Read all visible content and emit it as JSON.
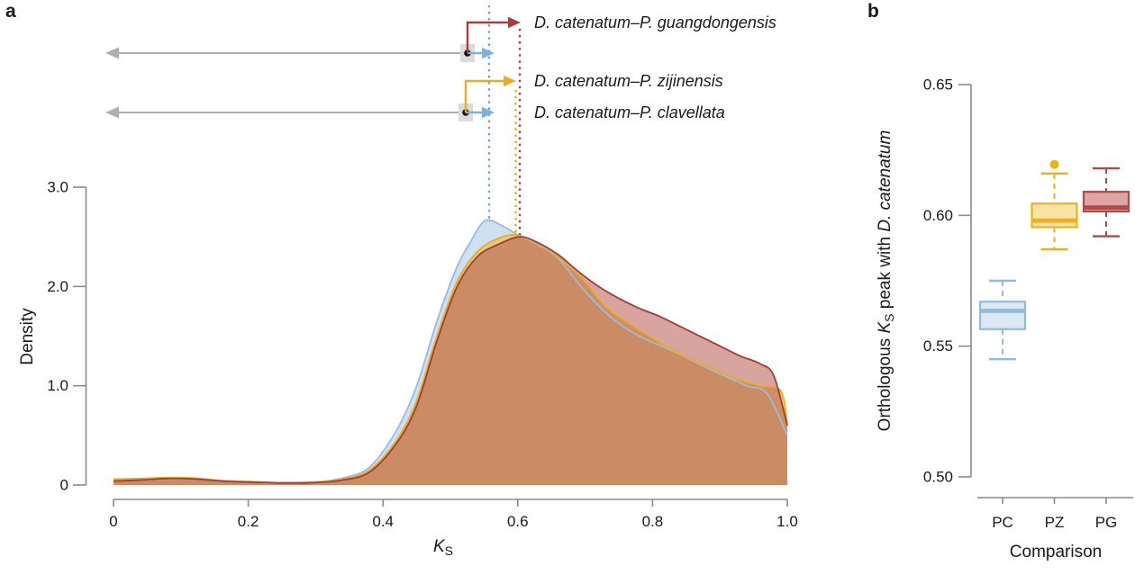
{
  "panel_a": {
    "label": "a",
    "ylabel": "Density",
    "xlabel_main": "K",
    "xlabel_sub": "S",
    "legend": [
      {
        "text": "D. catenatum–P. guangdongensis",
        "color": "#A6403C"
      },
      {
        "text": "D. catenatum–P. zijinensis",
        "color": "#EDAD21"
      },
      {
        "text": "D. catenatum–P. clavellata",
        "color": "#92B9E4"
      }
    ]
  },
  "panel_b": {
    "label": "b",
    "ylabel_prefix": "Orthologous ",
    "ylabel_k": "K",
    "ylabel_sub": "S",
    "ylabel_mid": " peak with ",
    "ylabel_species": "D. catenatum",
    "xlabel": "Comparison"
  },
  "colors": {
    "pc_blue": "#92B9E4",
    "pz_yellow": "#EDAD21",
    "pg_red": "#A6403C",
    "axis_gray": "#8C8C8C",
    "arrow_gray": "#AFAFAF"
  },
  "chart_data": [
    {
      "type": "area",
      "title": "Orthologous Ks density distributions",
      "xlabel": "Ks",
      "ylabel": "Density",
      "xlim": [
        0,
        1
      ],
      "ylim": [
        0,
        3
      ],
      "grid": false,
      "x_ticks": {
        "values": [
          0,
          0.2,
          0.4,
          0.6,
          0.8,
          1.0
        ],
        "labels": [
          "0",
          "0.2",
          "0.4",
          "0.6",
          "0.8",
          "1.0"
        ]
      },
      "y_ticks": {
        "values": [
          0,
          1,
          2,
          3
        ],
        "labels": [
          "0",
          "1.0",
          "2.0",
          "3.0"
        ]
      },
      "series": [
        {
          "name": "D. catenatum–P. clavellata",
          "color": "#9CBBDD",
          "fill": "#A8C6E5",
          "fill_opacity": 0.55,
          "points": [
            [
              0,
              0.04
            ],
            [
              0.04,
              0.05
            ],
            [
              0.08,
              0.06
            ],
            [
              0.12,
              0.06
            ],
            [
              0.16,
              0.04
            ],
            [
              0.2,
              0.03
            ],
            [
              0.25,
              0.02
            ],
            [
              0.3,
              0.03
            ],
            [
              0.34,
              0.07
            ],
            [
              0.38,
              0.18
            ],
            [
              0.42,
              0.55
            ],
            [
              0.45,
              1.0
            ],
            [
              0.48,
              1.65
            ],
            [
              0.51,
              2.2
            ],
            [
              0.53,
              2.45
            ],
            [
              0.545,
              2.62
            ],
            [
              0.557,
              2.67
            ],
            [
              0.58,
              2.6
            ],
            [
              0.6,
              2.52
            ],
            [
              0.63,
              2.42
            ],
            [
              0.66,
              2.28
            ],
            [
              0.7,
              1.95
            ],
            [
              0.74,
              1.68
            ],
            [
              0.78,
              1.5
            ],
            [
              0.82,
              1.38
            ],
            [
              0.86,
              1.25
            ],
            [
              0.9,
              1.12
            ],
            [
              0.94,
              1.0
            ],
            [
              0.97,
              0.92
            ],
            [
              1.0,
              0.5
            ]
          ]
        },
        {
          "name": "D. catenatum–P. zijinensis",
          "color": "#E9AD1F",
          "fill": "#EFC35C",
          "fill_opacity": 0.75,
          "points": [
            [
              0,
              0.06
            ],
            [
              0.04,
              0.065
            ],
            [
              0.08,
              0.075
            ],
            [
              0.12,
              0.07
            ],
            [
              0.16,
              0.045
            ],
            [
              0.2,
              0.035
            ],
            [
              0.25,
              0.025
            ],
            [
              0.3,
              0.03
            ],
            [
              0.34,
              0.06
            ],
            [
              0.38,
              0.15
            ],
            [
              0.42,
              0.45
            ],
            [
              0.45,
              0.85
            ],
            [
              0.48,
              1.5
            ],
            [
              0.51,
              2.05
            ],
            [
              0.54,
              2.35
            ],
            [
              0.57,
              2.48
            ],
            [
              0.596,
              2.52
            ],
            [
              0.62,
              2.46
            ],
            [
              0.65,
              2.35
            ],
            [
              0.68,
              2.18
            ],
            [
              0.7,
              2.05
            ],
            [
              0.73,
              1.8
            ],
            [
              0.76,
              1.65
            ],
            [
              0.8,
              1.48
            ],
            [
              0.84,
              1.32
            ],
            [
              0.88,
              1.2
            ],
            [
              0.92,
              1.08
            ],
            [
              0.96,
              1.0
            ],
            [
              0.99,
              0.95
            ],
            [
              1.0,
              0.62
            ]
          ]
        },
        {
          "name": "D. catenatum–P. guangdongensis",
          "color": "#A23D39",
          "fill": "#B25048",
          "fill_opacity": 0.52,
          "points": [
            [
              0,
              0.04
            ],
            [
              0.04,
              0.05
            ],
            [
              0.08,
              0.065
            ],
            [
              0.12,
              0.06
            ],
            [
              0.16,
              0.04
            ],
            [
              0.2,
              0.03
            ],
            [
              0.25,
              0.02
            ],
            [
              0.3,
              0.025
            ],
            [
              0.34,
              0.05
            ],
            [
              0.38,
              0.13
            ],
            [
              0.42,
              0.42
            ],
            [
              0.45,
              0.8
            ],
            [
              0.48,
              1.45
            ],
            [
              0.51,
              2.0
            ],
            [
              0.54,
              2.3
            ],
            [
              0.57,
              2.42
            ],
            [
              0.603,
              2.5
            ],
            [
              0.63,
              2.44
            ],
            [
              0.66,
              2.32
            ],
            [
              0.69,
              2.15
            ],
            [
              0.72,
              2.0
            ],
            [
              0.75,
              1.88
            ],
            [
              0.78,
              1.78
            ],
            [
              0.81,
              1.7
            ],
            [
              0.84,
              1.6
            ],
            [
              0.87,
              1.5
            ],
            [
              0.9,
              1.4
            ],
            [
              0.93,
              1.3
            ],
            [
              0.96,
              1.22
            ],
            [
              0.98,
              1.1
            ],
            [
              1.0,
              0.6
            ]
          ]
        }
      ],
      "peak_markers": [
        {
          "ks": 0.5575,
          "density": 2.67,
          "color": "#6F9FD8",
          "series": "D. catenatum–P. clavellata"
        },
        {
          "ks": 0.597,
          "density": 2.52,
          "color": "#EDAD21",
          "series": "D. catenatum–P. zijinensis"
        },
        {
          "ks": 0.603,
          "density": 2.5,
          "color": "#A6403C",
          "series": "D. catenatum–P. guangdongensis"
        }
      ]
    },
    {
      "type": "boxplot",
      "title": "Orthologous Ks peak with D. catenatum",
      "xlabel": "Comparison",
      "ylabel": "Orthologous Ks peak with D. catenatum",
      "ylim": [
        0.5,
        0.65
      ],
      "grid": false,
      "y_ticks": {
        "values": [
          0.65,
          0.6,
          0.55,
          0.5
        ],
        "labels": [
          "0.65",
          "0.60",
          "0.55",
          "0.50"
        ]
      },
      "categories": [
        "PC",
        "PZ",
        "PG"
      ],
      "boxes": [
        {
          "category": "PC",
          "whisker_low": 0.545,
          "q1": 0.5565,
          "median": 0.5635,
          "q3": 0.567,
          "whisker_high": 0.575,
          "outliers": [],
          "stroke": "#8FBCE0",
          "fill": "#DCE9F5"
        },
        {
          "category": "PZ",
          "whisker_low": 0.587,
          "q1": 0.5955,
          "median": 0.598,
          "q3": 0.6045,
          "whisker_high": 0.616,
          "outliers": [
            0.6195
          ],
          "stroke": "#EDB11F",
          "fill": "#F9E4A6"
        },
        {
          "category": "PG",
          "whisker_low": 0.592,
          "q1": 0.6015,
          "median": 0.603,
          "q3": 0.609,
          "whisker_high": 0.618,
          "outliers": [],
          "stroke": "#AF4A46",
          "fill": "#DBA6A4"
        }
      ]
    }
  ]
}
